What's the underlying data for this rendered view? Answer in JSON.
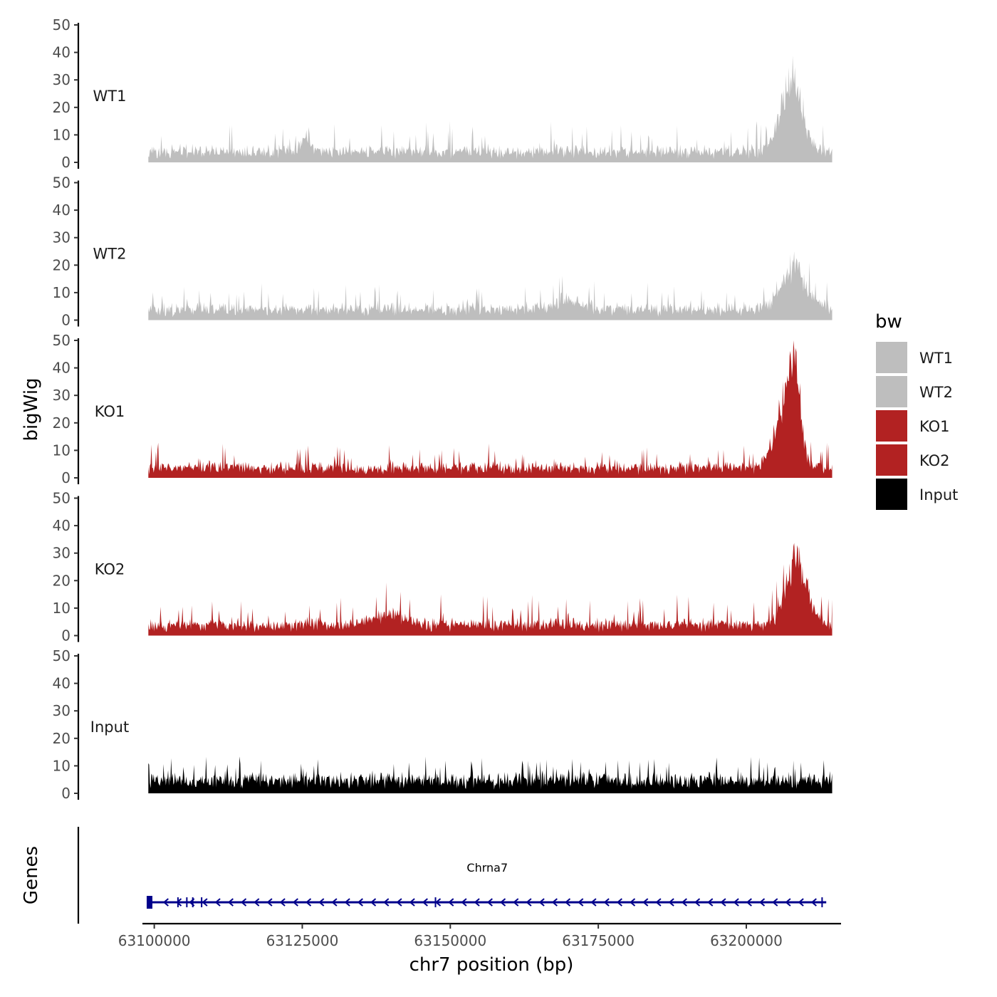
{
  "chart_data": {
    "type": "area",
    "description_kind": "genome browser coverage tracks",
    "xlabel": "chr7 position (bp)",
    "ylabel": "bigWig",
    "genes_label": "Genes",
    "xlim": [
      63098000,
      63216000
    ],
    "region": [
      63099000,
      63214500
    ],
    "x_ticks": [
      63100000,
      63125000,
      63150000,
      63175000,
      63200000
    ],
    "x_tick_labels": [
      "63100000",
      "63125000",
      "63150000",
      "63175000",
      "63200000"
    ],
    "ylim": [
      0,
      50
    ],
    "y_ticks": [
      0,
      10,
      20,
      30,
      40,
      50
    ],
    "y_tick_labels": [
      "0",
      "10",
      "20",
      "30",
      "40",
      "50"
    ],
    "series": [
      {
        "name": "WT1",
        "color": "#bebebe",
        "baseline": 4,
        "noise": 4,
        "spike_rate": 0.06,
        "spike_height": 8,
        "peaks": [
          {
            "center": 63207500,
            "height": 31,
            "width": 1800
          },
          {
            "center": 63125500,
            "height": 7,
            "width": 800
          }
        ]
      },
      {
        "name": "WT2",
        "color": "#bebebe",
        "baseline": 4,
        "noise": 4,
        "spike_rate": 0.06,
        "spike_height": 7,
        "peaks": [
          {
            "center": 63208000,
            "height": 19,
            "width": 2000
          },
          {
            "center": 63170000,
            "height": 4,
            "width": 2500
          }
        ]
      },
      {
        "name": "KO1",
        "color": "#b22222",
        "baseline": 3.5,
        "noise": 4,
        "spike_rate": 0.06,
        "spike_height": 6,
        "peaks": [
          {
            "center": 63208000,
            "height": 47,
            "width": 1100
          },
          {
            "center": 63206000,
            "height": 18,
            "width": 1800
          }
        ]
      },
      {
        "name": "KO2",
        "color": "#b22222",
        "baseline": 4,
        "noise": 4,
        "spike_rate": 0.07,
        "spike_height": 8,
        "peaks": [
          {
            "center": 63208500,
            "height": 29,
            "width": 1800
          },
          {
            "center": 63140000,
            "height": 5,
            "width": 2500
          }
        ]
      },
      {
        "name": "Input",
        "color": "#000000",
        "baseline": 5,
        "noise": 4,
        "spike_rate": 0.07,
        "spike_height": 6,
        "peaks": []
      }
    ],
    "legend": {
      "title": "bw",
      "position": "right",
      "entries": [
        {
          "label": "WT1",
          "color": "#bebebe"
        },
        {
          "label": "WT2",
          "color": "#bebebe"
        },
        {
          "label": "KO1",
          "color": "#b22222"
        },
        {
          "label": "KO2",
          "color": "#b22222"
        },
        {
          "label": "Input",
          "color": "#000000"
        }
      ]
    },
    "gene": {
      "name": "Chrna7",
      "color": "#00008b",
      "start": 63099000,
      "end": 63213500,
      "strand": "-",
      "exons": [
        63099200,
        63104000,
        63105500,
        63106500,
        63108000,
        63147500,
        63212800
      ]
    }
  }
}
